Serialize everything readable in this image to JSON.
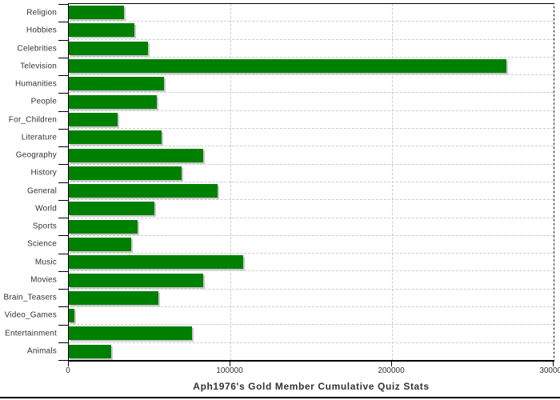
{
  "chart_data": {
    "type": "bar",
    "orientation": "horizontal",
    "title": "Aph1976's Gold Member Cumulative Quiz Stats",
    "categories": [
      "Religion",
      "Hobbies",
      "Celebrities",
      "Television",
      "Humanities",
      "People",
      "For_Children",
      "Literature",
      "Geography",
      "History",
      "General",
      "World",
      "Sports",
      "Science",
      "Music",
      "Movies",
      "Brain_Teasers",
      "Video_Games",
      "Entertainment",
      "Animals"
    ],
    "values": [
      34000,
      40500,
      49000,
      271000,
      59000,
      54500,
      30000,
      57500,
      83000,
      70000,
      92000,
      53000,
      42500,
      38500,
      108000,
      83000,
      55500,
      3500,
      76000,
      26000
    ],
    "xlabel": "",
    "ylabel": "",
    "xlim": [
      0,
      300000
    ],
    "xticks": [
      0,
      100000,
      200000,
      300000
    ],
    "xtick_labels": [
      "0",
      "100000",
      "200000",
      "300000"
    ],
    "grid": "dashed",
    "legend": "none",
    "colors": {
      "bar_fill": "#008000",
      "bar_shadow": "#c9c9c9",
      "grid_line": "#cccccc",
      "axis_line": "#000000",
      "label_text": "#333333",
      "title_text": "#333333",
      "background": "#ffffff"
    }
  }
}
